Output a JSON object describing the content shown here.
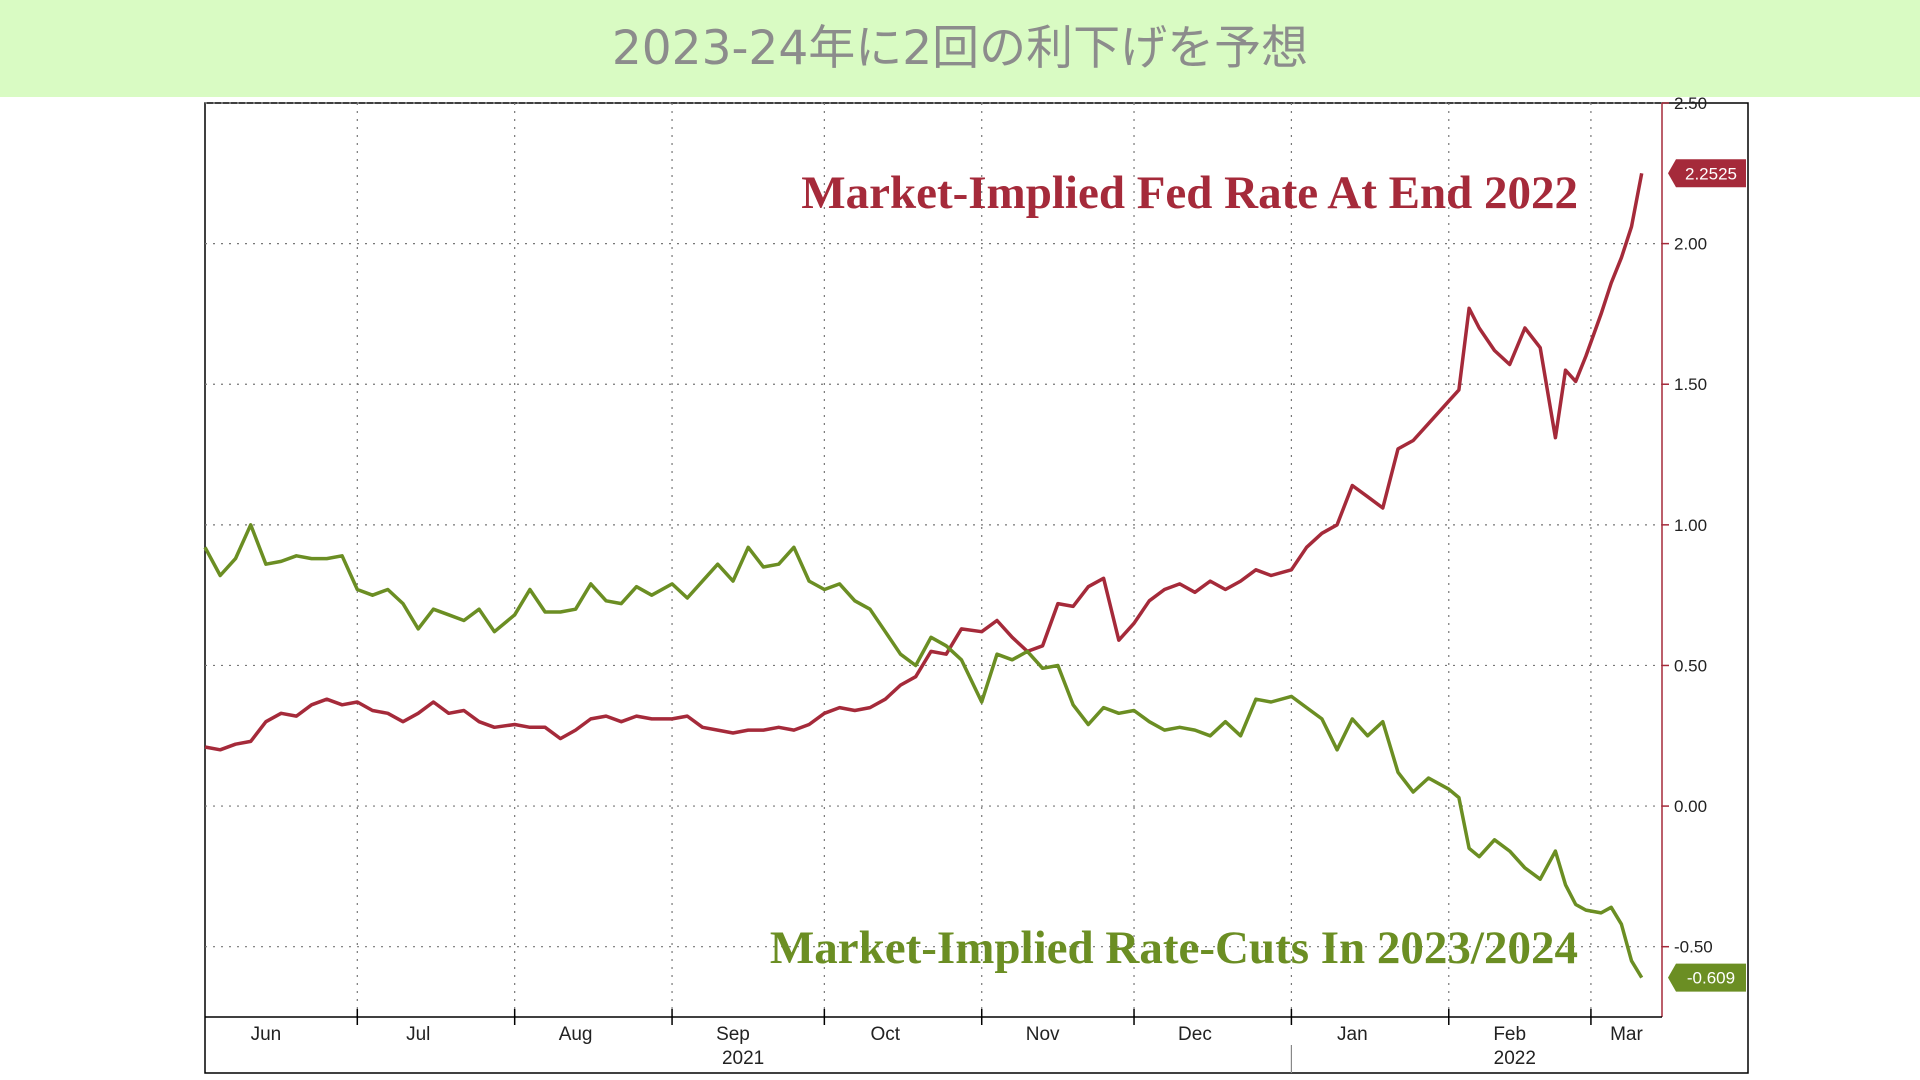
{
  "header": {
    "title": "2023-24年に2回の利下げを予想"
  },
  "chart_data": {
    "type": "line",
    "x_start": "2021-06-01",
    "x_end": "2022-03-15",
    "ylim": [
      -0.75,
      2.5
    ],
    "yticks": [
      "2.50",
      "2.00",
      "1.50",
      "1.00",
      "0.50",
      "0.00",
      "-0.50"
    ],
    "ytick_values": [
      2.5,
      2.0,
      1.5,
      1.0,
      0.5,
      0.0,
      -0.5
    ],
    "month_labels": [
      {
        "label": "Jun",
        "date": "2021-06-13"
      },
      {
        "label": "Jul",
        "date": "2021-07-13"
      },
      {
        "label": "Aug",
        "date": "2021-08-13"
      },
      {
        "label": "Sep",
        "date": "2021-09-13"
      },
      {
        "label": "Oct",
        "date": "2021-10-13"
      },
      {
        "label": "Nov",
        "date": "2021-11-13"
      },
      {
        "label": "Dec",
        "date": "2021-12-13"
      },
      {
        "label": "Jan",
        "date": "2022-01-13"
      },
      {
        "label": "Feb",
        "date": "2022-02-13"
      },
      {
        "label": "Mar",
        "date": "2022-03-08"
      }
    ],
    "month_boundaries": [
      "2021-07-01",
      "2021-08-01",
      "2021-09-01",
      "2021-10-01",
      "2021-11-01",
      "2021-12-01",
      "2022-01-01",
      "2022-02-01",
      "2022-03-01"
    ],
    "year_labels": [
      {
        "label": "2021",
        "date": "2021-09-15"
      },
      {
        "label": "2022",
        "date": "2022-02-14"
      }
    ],
    "grid": true,
    "series": [
      {
        "name": "Market-Implied Fed Rate At End 2022",
        "color": "#a52a3a",
        "last_value_label": "2.2525",
        "points": [
          [
            "2021-06-01",
            0.21
          ],
          [
            "2021-06-04",
            0.2
          ],
          [
            "2021-06-07",
            0.22
          ],
          [
            "2021-06-10",
            0.23
          ],
          [
            "2021-06-13",
            0.3
          ],
          [
            "2021-06-16",
            0.33
          ],
          [
            "2021-06-19",
            0.32
          ],
          [
            "2021-06-22",
            0.36
          ],
          [
            "2021-06-25",
            0.38
          ],
          [
            "2021-06-28",
            0.36
          ],
          [
            "2021-07-01",
            0.37
          ],
          [
            "2021-07-04",
            0.34
          ],
          [
            "2021-07-07",
            0.33
          ],
          [
            "2021-07-10",
            0.3
          ],
          [
            "2021-07-13",
            0.33
          ],
          [
            "2021-07-16",
            0.37
          ],
          [
            "2021-07-19",
            0.33
          ],
          [
            "2021-07-22",
            0.34
          ],
          [
            "2021-07-25",
            0.3
          ],
          [
            "2021-07-28",
            0.28
          ],
          [
            "2021-08-01",
            0.29
          ],
          [
            "2021-08-04",
            0.28
          ],
          [
            "2021-08-07",
            0.28
          ],
          [
            "2021-08-10",
            0.24
          ],
          [
            "2021-08-13",
            0.27
          ],
          [
            "2021-08-16",
            0.31
          ],
          [
            "2021-08-19",
            0.32
          ],
          [
            "2021-08-22",
            0.3
          ],
          [
            "2021-08-25",
            0.32
          ],
          [
            "2021-08-28",
            0.31
          ],
          [
            "2021-09-01",
            0.31
          ],
          [
            "2021-09-04",
            0.32
          ],
          [
            "2021-09-07",
            0.28
          ],
          [
            "2021-09-10",
            0.27
          ],
          [
            "2021-09-13",
            0.26
          ],
          [
            "2021-09-16",
            0.27
          ],
          [
            "2021-09-19",
            0.27
          ],
          [
            "2021-09-22",
            0.28
          ],
          [
            "2021-09-25",
            0.27
          ],
          [
            "2021-09-28",
            0.29
          ],
          [
            "2021-10-01",
            0.33
          ],
          [
            "2021-10-04",
            0.35
          ],
          [
            "2021-10-07",
            0.34
          ],
          [
            "2021-10-10",
            0.35
          ],
          [
            "2021-10-13",
            0.38
          ],
          [
            "2021-10-16",
            0.43
          ],
          [
            "2021-10-19",
            0.46
          ],
          [
            "2021-10-22",
            0.55
          ],
          [
            "2021-10-25",
            0.54
          ],
          [
            "2021-10-28",
            0.63
          ],
          [
            "2021-11-01",
            0.62
          ],
          [
            "2021-11-04",
            0.66
          ],
          [
            "2021-11-07",
            0.6
          ],
          [
            "2021-11-10",
            0.55
          ],
          [
            "2021-11-13",
            0.57
          ],
          [
            "2021-11-16",
            0.72
          ],
          [
            "2021-11-19",
            0.71
          ],
          [
            "2021-11-22",
            0.78
          ],
          [
            "2021-11-25",
            0.81
          ],
          [
            "2021-11-28",
            0.59
          ],
          [
            "2021-12-01",
            0.65
          ],
          [
            "2021-12-04",
            0.73
          ],
          [
            "2021-12-07",
            0.77
          ],
          [
            "2021-12-10",
            0.79
          ],
          [
            "2021-12-13",
            0.76
          ],
          [
            "2021-12-16",
            0.8
          ],
          [
            "2021-12-19",
            0.77
          ],
          [
            "2021-12-22",
            0.8
          ],
          [
            "2021-12-25",
            0.84
          ],
          [
            "2021-12-28",
            0.82
          ],
          [
            "2022-01-01",
            0.84
          ],
          [
            "2022-01-04",
            0.92
          ],
          [
            "2022-01-07",
            0.97
          ],
          [
            "2022-01-10",
            1.0
          ],
          [
            "2022-01-13",
            1.14
          ],
          [
            "2022-01-16",
            1.1
          ],
          [
            "2022-01-19",
            1.06
          ],
          [
            "2022-01-22",
            1.27
          ],
          [
            "2022-01-25",
            1.3
          ],
          [
            "2022-01-28",
            1.36
          ],
          [
            "2022-02-01",
            1.44
          ],
          [
            "2022-02-03",
            1.48
          ],
          [
            "2022-02-05",
            1.77
          ],
          [
            "2022-02-07",
            1.7
          ],
          [
            "2022-02-10",
            1.62
          ],
          [
            "2022-02-13",
            1.57
          ],
          [
            "2022-02-16",
            1.7
          ],
          [
            "2022-02-19",
            1.63
          ],
          [
            "2022-02-22",
            1.31
          ],
          [
            "2022-02-24",
            1.55
          ],
          [
            "2022-02-26",
            1.51
          ],
          [
            "2022-02-28",
            1.6
          ],
          [
            "2022-03-03",
            1.75
          ],
          [
            "2022-03-05",
            1.86
          ],
          [
            "2022-03-07",
            1.95
          ],
          [
            "2022-03-09",
            2.06
          ],
          [
            "2022-03-11",
            2.25
          ]
        ]
      },
      {
        "name": "Market-Implied Rate-Cuts In 2023/2024",
        "color": "#6b8e23",
        "last_value_label": "-0.609",
        "points": [
          [
            "2021-06-01",
            0.92
          ],
          [
            "2021-06-04",
            0.82
          ],
          [
            "2021-06-07",
            0.88
          ],
          [
            "2021-06-10",
            1.0
          ],
          [
            "2021-06-13",
            0.86
          ],
          [
            "2021-06-16",
            0.87
          ],
          [
            "2021-06-19",
            0.89
          ],
          [
            "2021-06-22",
            0.88
          ],
          [
            "2021-06-25",
            0.88
          ],
          [
            "2021-06-28",
            0.89
          ],
          [
            "2021-07-01",
            0.77
          ],
          [
            "2021-07-04",
            0.75
          ],
          [
            "2021-07-07",
            0.77
          ],
          [
            "2021-07-10",
            0.72
          ],
          [
            "2021-07-13",
            0.63
          ],
          [
            "2021-07-16",
            0.7
          ],
          [
            "2021-07-19",
            0.68
          ],
          [
            "2021-07-22",
            0.66
          ],
          [
            "2021-07-25",
            0.7
          ],
          [
            "2021-07-28",
            0.62
          ],
          [
            "2021-08-01",
            0.68
          ],
          [
            "2021-08-04",
            0.77
          ],
          [
            "2021-08-07",
            0.69
          ],
          [
            "2021-08-10",
            0.69
          ],
          [
            "2021-08-13",
            0.7
          ],
          [
            "2021-08-16",
            0.79
          ],
          [
            "2021-08-19",
            0.73
          ],
          [
            "2021-08-22",
            0.72
          ],
          [
            "2021-08-25",
            0.78
          ],
          [
            "2021-08-28",
            0.75
          ],
          [
            "2021-09-01",
            0.79
          ],
          [
            "2021-09-04",
            0.74
          ],
          [
            "2021-09-07",
            0.8
          ],
          [
            "2021-09-10",
            0.86
          ],
          [
            "2021-09-13",
            0.8
          ],
          [
            "2021-09-16",
            0.92
          ],
          [
            "2021-09-19",
            0.85
          ],
          [
            "2021-09-22",
            0.86
          ],
          [
            "2021-09-25",
            0.92
          ],
          [
            "2021-09-28",
            0.8
          ],
          [
            "2021-10-01",
            0.77
          ],
          [
            "2021-10-04",
            0.79
          ],
          [
            "2021-10-07",
            0.73
          ],
          [
            "2021-10-10",
            0.7
          ],
          [
            "2021-10-13",
            0.62
          ],
          [
            "2021-10-16",
            0.54
          ],
          [
            "2021-10-19",
            0.5
          ],
          [
            "2021-10-22",
            0.6
          ],
          [
            "2021-10-25",
            0.57
          ],
          [
            "2021-10-28",
            0.52
          ],
          [
            "2021-11-01",
            0.37
          ],
          [
            "2021-11-04",
            0.54
          ],
          [
            "2021-11-07",
            0.52
          ],
          [
            "2021-11-10",
            0.55
          ],
          [
            "2021-11-13",
            0.49
          ],
          [
            "2021-11-16",
            0.5
          ],
          [
            "2021-11-19",
            0.36
          ],
          [
            "2021-11-22",
            0.29
          ],
          [
            "2021-11-25",
            0.35
          ],
          [
            "2021-11-28",
            0.33
          ],
          [
            "2021-12-01",
            0.34
          ],
          [
            "2021-12-04",
            0.3
          ],
          [
            "2021-12-07",
            0.27
          ],
          [
            "2021-12-10",
            0.28
          ],
          [
            "2021-12-13",
            0.27
          ],
          [
            "2021-12-16",
            0.25
          ],
          [
            "2021-12-19",
            0.3
          ],
          [
            "2021-12-22",
            0.25
          ],
          [
            "2021-12-25",
            0.38
          ],
          [
            "2021-12-28",
            0.37
          ],
          [
            "2022-01-01",
            0.39
          ],
          [
            "2022-01-04",
            0.35
          ],
          [
            "2022-01-07",
            0.31
          ],
          [
            "2022-01-10",
            0.2
          ],
          [
            "2022-01-13",
            0.31
          ],
          [
            "2022-01-16",
            0.25
          ],
          [
            "2022-01-19",
            0.3
          ],
          [
            "2022-01-22",
            0.12
          ],
          [
            "2022-01-25",
            0.05
          ],
          [
            "2022-01-28",
            0.1
          ],
          [
            "2022-02-01",
            0.06
          ],
          [
            "2022-02-03",
            0.03
          ],
          [
            "2022-02-05",
            -0.15
          ],
          [
            "2022-02-07",
            -0.18
          ],
          [
            "2022-02-10",
            -0.12
          ],
          [
            "2022-02-13",
            -0.16
          ],
          [
            "2022-02-16",
            -0.22
          ],
          [
            "2022-02-19",
            -0.26
          ],
          [
            "2022-02-22",
            -0.16
          ],
          [
            "2022-02-24",
            -0.28
          ],
          [
            "2022-02-26",
            -0.35
          ],
          [
            "2022-02-28",
            -0.37
          ],
          [
            "2022-03-03",
            -0.38
          ],
          [
            "2022-03-05",
            -0.36
          ],
          [
            "2022-03-07",
            -0.42
          ],
          [
            "2022-03-09",
            -0.55
          ],
          [
            "2022-03-11",
            -0.61
          ]
        ]
      }
    ]
  }
}
